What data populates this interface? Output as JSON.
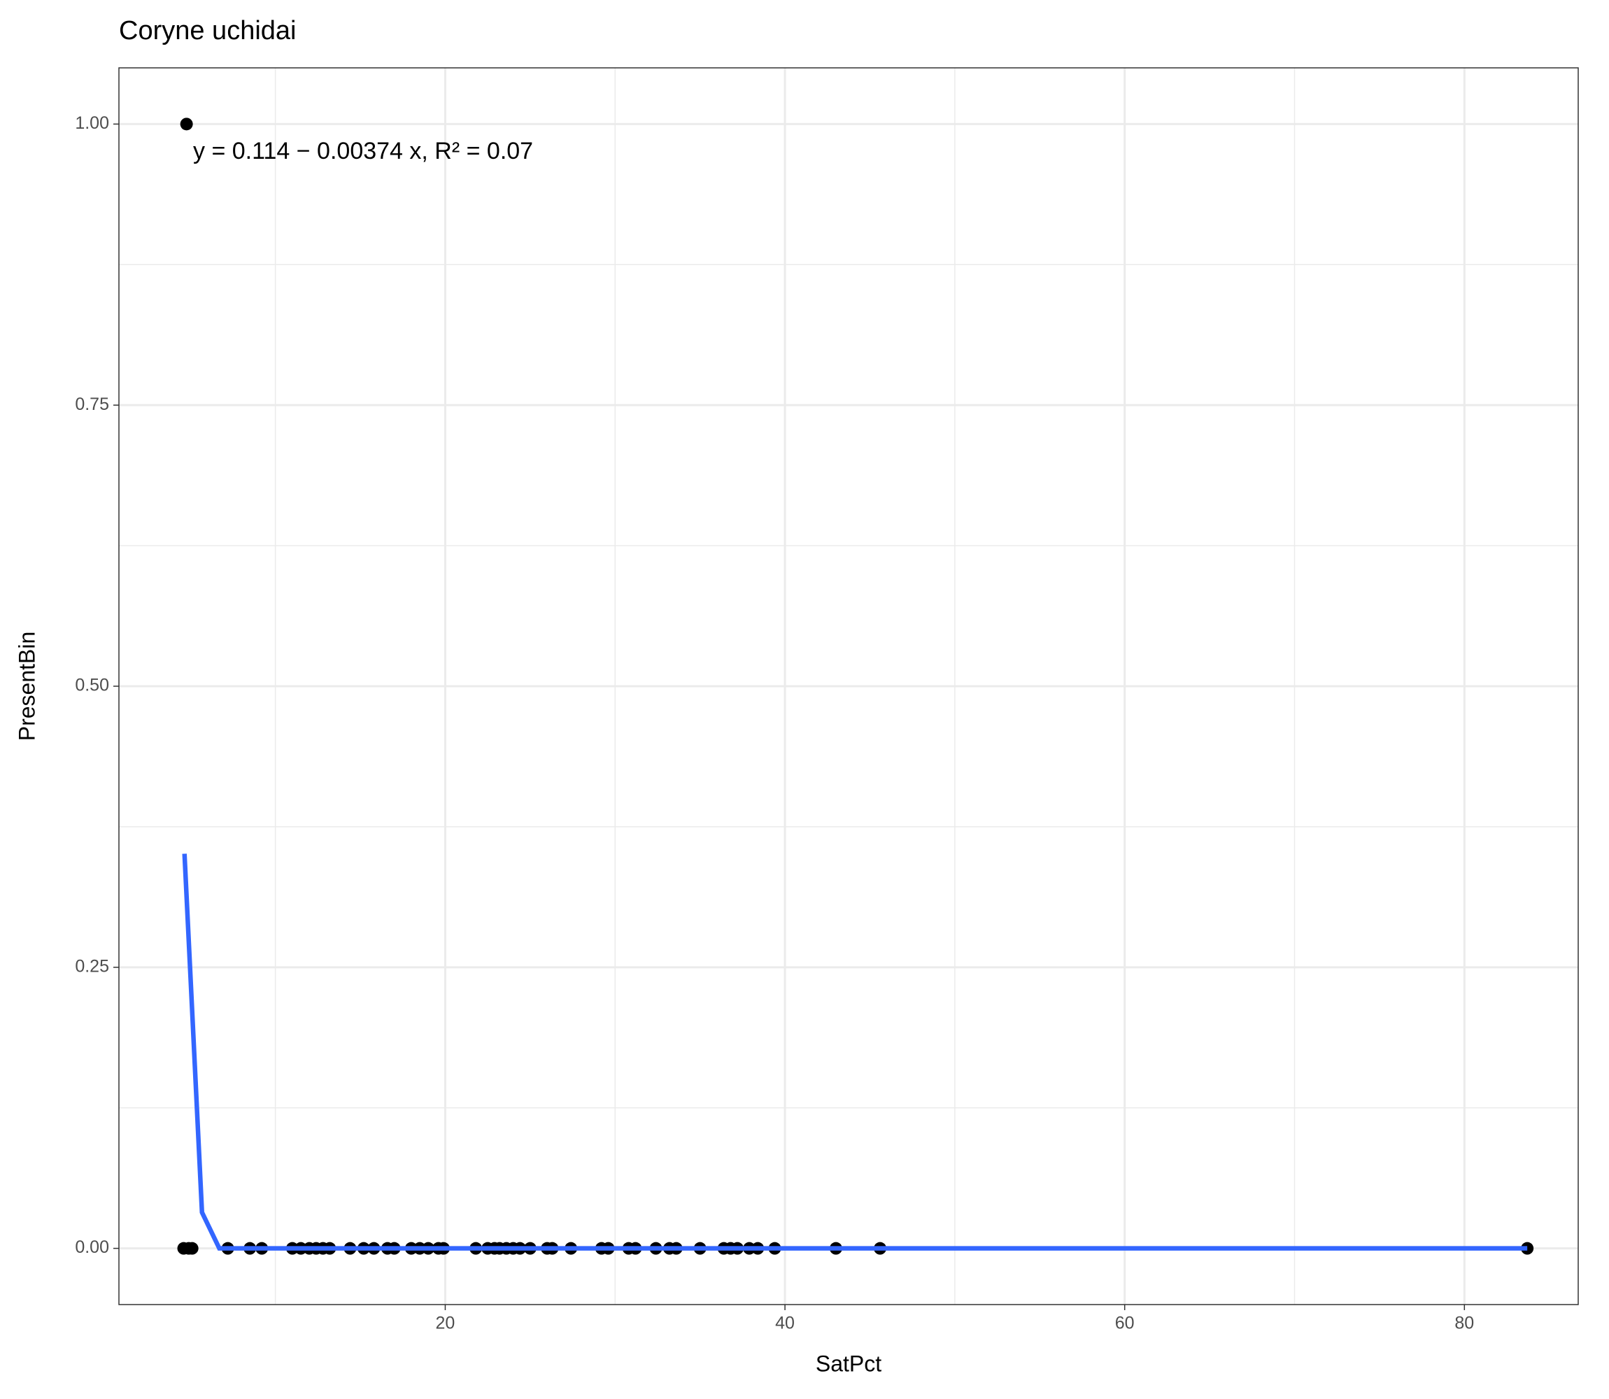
{
  "chart_data": {
    "type": "scatter",
    "title": "Coryne uchidai",
    "x_label": "SatPct",
    "y_label": "PresentBin",
    "annotation": "y = 0.114 − 0.00374 x,  R² = 0.07",
    "xlim": [
      0.79,
      86.7
    ],
    "ylim": [
      -0.05,
      1.05
    ],
    "xticks": [
      20,
      40,
      60,
      80
    ],
    "yticks": [
      {
        "value": 0,
        "label": "0.00"
      },
      {
        "value": 0.25,
        "label": "0.25"
      },
      {
        "value": 0.5,
        "label": "0.50"
      },
      {
        "value": 0.75,
        "label": "0.75"
      },
      {
        "value": 1,
        "label": "1.00"
      }
    ],
    "x_minor_grid": [
      10,
      30,
      50,
      70
    ],
    "y_minor_grid": [
      0.125,
      0.375,
      0.625,
      0.875
    ],
    "grid": true,
    "series": [
      {
        "color": "#000000",
        "x": [
          4.77,
          4.6,
          4.9,
          5.1,
          7.2,
          8.5,
          9.2,
          11,
          11.5,
          12,
          12.4,
          12.8,
          13.2,
          14.4,
          15.2,
          15.8,
          16.6,
          17,
          18,
          18.5,
          19,
          19.6,
          19.9,
          21.8,
          22.5,
          22.9,
          23.2,
          23.6,
          24,
          24.4,
          25,
          26,
          26.3,
          27.4,
          29.2,
          29.6,
          30.8,
          31.2,
          32.4,
          33.2,
          33.6,
          35,
          36.4,
          36.8,
          37.2,
          37.9,
          38.4,
          39.4,
          43,
          45.6,
          83.7
        ],
        "values": [
          1,
          0,
          0,
          0,
          0,
          0,
          0,
          0,
          0,
          0,
          0,
          0,
          0,
          0,
          0,
          0,
          0,
          0,
          0,
          0,
          0,
          0,
          0,
          0,
          0,
          0,
          0,
          0,
          0,
          0,
          0,
          0,
          0,
          0,
          0,
          0,
          0,
          0,
          0,
          0,
          0,
          0,
          0,
          0,
          0,
          0,
          0,
          0,
          0,
          0,
          0
        ]
      },
      {
        "type": "line",
        "color": "#3366ff",
        "x": [
          4.65,
          5.68,
          6.7,
          83.7
        ],
        "values": [
          0.351,
          0.032,
          0,
          0
        ]
      }
    ]
  }
}
